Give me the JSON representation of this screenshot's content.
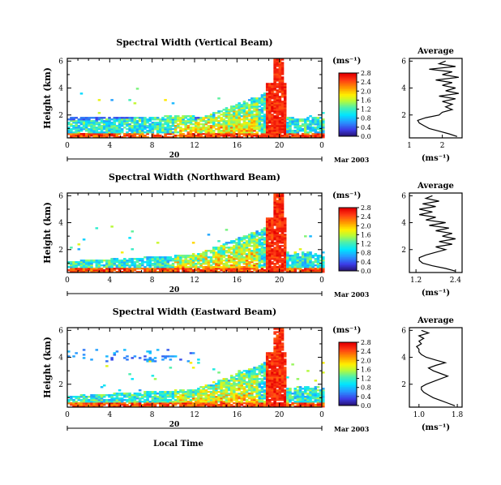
{
  "chart_data": [
    {
      "type": "heatmap",
      "title": "Spectral Width (Vertical Beam)",
      "ylabel": "Height (km)",
      "xlabel": "",
      "x_ticks": [
        "0",
        "4",
        "8",
        "12",
        "16",
        "20",
        "0"
      ],
      "y_ticks": [
        "2",
        "4",
        "6"
      ],
      "xlim": [
        0,
        24
      ],
      "ylim": [
        0.3,
        6.2
      ],
      "day_label": "20",
      "month_label": "Mar 2003",
      "colorbar": {
        "unit": "(ms⁻¹)",
        "ticks": [
          "0.0",
          "0.4",
          "0.8",
          "1.2",
          "1.6",
          "2.0",
          "2.4",
          "2.8"
        ],
        "range": [
          0,
          2.8
        ]
      },
      "average": {
        "title": "Average",
        "xlabel": "(ms⁻¹)",
        "x_ticks": [
          "1",
          "2"
        ],
        "xlim": [
          1.0,
          2.6
        ],
        "y_ticks": [
          "2",
          "4",
          "6"
        ],
        "ylim": [
          0.3,
          6.2
        ],
        "profile": [
          [
            2.45,
            0.4
          ],
          [
            2.2,
            0.6
          ],
          [
            1.9,
            0.8
          ],
          [
            1.6,
            1.0
          ],
          [
            1.45,
            1.2
          ],
          [
            1.3,
            1.4
          ],
          [
            1.25,
            1.6
          ],
          [
            1.5,
            1.8
          ],
          [
            1.9,
            2.0
          ],
          [
            2.0,
            2.2
          ],
          [
            2.3,
            2.4
          ],
          [
            2.1,
            2.6
          ],
          [
            2.3,
            2.8
          ],
          [
            2.0,
            3.0
          ],
          [
            2.4,
            3.2
          ],
          [
            1.9,
            3.4
          ],
          [
            2.5,
            3.6
          ],
          [
            2.1,
            3.8
          ],
          [
            2.4,
            4.0
          ],
          [
            2.0,
            4.2
          ],
          [
            2.3,
            4.4
          ],
          [
            1.8,
            4.6
          ],
          [
            2.5,
            4.8
          ],
          [
            2.0,
            5.0
          ],
          [
            2.3,
            5.2
          ],
          [
            1.6,
            5.4
          ],
          [
            2.4,
            5.6
          ],
          [
            1.9,
            5.8
          ],
          [
            2.1,
            6.0
          ]
        ]
      }
    },
    {
      "type": "heatmap",
      "title": "Spectral Width (Northward Beam)",
      "ylabel": "Height (km)",
      "xlabel": "",
      "x_ticks": [
        "0",
        "4",
        "8",
        "12",
        "16",
        "20",
        "0"
      ],
      "y_ticks": [
        "2",
        "4",
        "6"
      ],
      "xlim": [
        0,
        24
      ],
      "ylim": [
        0.3,
        6.2
      ],
      "day_label": "20",
      "month_label": "Mar 2003",
      "colorbar": {
        "unit": "(ms⁻¹)",
        "ticks": [
          "0.0",
          "0.4",
          "0.8",
          "1.2",
          "1.6",
          "2.0",
          "2.4",
          "2.8"
        ],
        "range": [
          0,
          2.8
        ]
      },
      "average": {
        "title": "Average",
        "xlabel": "(ms⁻¹)",
        "x_ticks": [
          "1.2",
          "2.4"
        ],
        "xlim": [
          1.0,
          2.6
        ],
        "y_ticks": [
          "2",
          "4",
          "6"
        ],
        "ylim": [
          0.3,
          6.2
        ],
        "profile": [
          [
            2.4,
            0.4
          ],
          [
            2.1,
            0.6
          ],
          [
            1.7,
            0.8
          ],
          [
            1.4,
            1.0
          ],
          [
            1.3,
            1.2
          ],
          [
            1.3,
            1.4
          ],
          [
            1.5,
            1.6
          ],
          [
            1.8,
            1.8
          ],
          [
            2.1,
            2.0
          ],
          [
            1.8,
            2.2
          ],
          [
            2.3,
            2.4
          ],
          [
            1.9,
            2.6
          ],
          [
            2.4,
            2.8
          ],
          [
            2.0,
            3.0
          ],
          [
            2.3,
            3.2
          ],
          [
            1.8,
            3.4
          ],
          [
            2.2,
            3.6
          ],
          [
            1.6,
            3.8
          ],
          [
            2.1,
            4.0
          ],
          [
            1.5,
            4.2
          ],
          [
            1.8,
            4.4
          ],
          [
            1.3,
            4.6
          ],
          [
            1.7,
            4.8
          ],
          [
            1.3,
            5.0
          ],
          [
            1.8,
            5.2
          ],
          [
            1.4,
            5.4
          ],
          [
            1.9,
            5.6
          ],
          [
            1.5,
            5.8
          ],
          [
            1.7,
            6.0
          ]
        ]
      }
    },
    {
      "type": "heatmap",
      "title": "Spectral Width (Eastward Beam)",
      "ylabel": "Height (km)",
      "xlabel": "Local Time",
      "x_ticks": [
        "0",
        "4",
        "8",
        "12",
        "16",
        "20",
        "0"
      ],
      "y_ticks": [
        "2",
        "4",
        "6"
      ],
      "xlim": [
        0,
        24
      ],
      "ylim": [
        0.3,
        6.2
      ],
      "day_label": "20",
      "month_label": "Mar 2003",
      "colorbar": {
        "unit": "(ms⁻¹)",
        "ticks": [
          "0.0",
          "0.4",
          "0.8",
          "1.2",
          "1.6",
          "2.0",
          "2.4",
          "2.8"
        ],
        "range": [
          0,
          2.8
        ]
      },
      "average": {
        "title": "Average",
        "xlabel": "(ms⁻¹)",
        "x_ticks": [
          "1.0",
          "1.8"
        ],
        "xlim": [
          0.8,
          1.9
        ],
        "y_ticks": [
          "2",
          "4",
          "6"
        ],
        "ylim": [
          0.3,
          6.2
        ],
        "profile": [
          [
            1.75,
            0.4
          ],
          [
            1.6,
            0.6
          ],
          [
            1.45,
            0.8
          ],
          [
            1.3,
            1.0
          ],
          [
            1.2,
            1.2
          ],
          [
            1.1,
            1.4
          ],
          [
            1.05,
            1.6
          ],
          [
            1.05,
            1.8
          ],
          [
            1.15,
            2.0
          ],
          [
            1.3,
            2.2
          ],
          [
            1.45,
            2.4
          ],
          [
            1.6,
            2.6
          ],
          [
            1.45,
            2.8
          ],
          [
            1.3,
            3.0
          ],
          [
            1.2,
            3.2
          ],
          [
            1.35,
            3.4
          ],
          [
            1.55,
            3.6
          ],
          [
            1.35,
            3.8
          ],
          [
            1.15,
            4.0
          ],
          [
            1.05,
            4.2
          ],
          [
            1.0,
            4.4
          ],
          [
            1.0,
            4.6
          ],
          [
            0.95,
            4.8
          ],
          [
            1.05,
            5.0
          ],
          [
            1.0,
            5.2
          ],
          [
            1.1,
            5.4
          ],
          [
            1.0,
            5.6
          ],
          [
            1.2,
            5.8
          ],
          [
            1.05,
            6.0
          ]
        ]
      }
    }
  ]
}
